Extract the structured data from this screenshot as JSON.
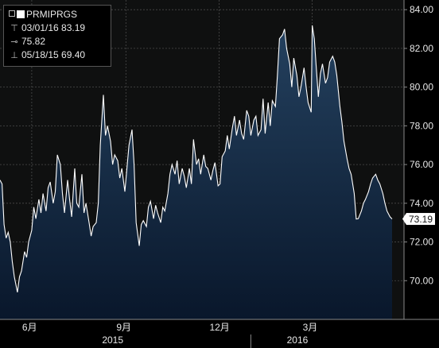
{
  "legend": {
    "series_name": "PRMIPRGS",
    "high_label": "03/01/16 83.19",
    "avg_label": "75.82",
    "low_label": "05/18/15 69.40"
  },
  "last_value_label": "73.19",
  "colors": {
    "background_plot": "#0f1010",
    "area_top": "#24415f",
    "area_bottom": "#09172b",
    "line": "#ffffff",
    "grid": "#555555",
    "axis_bg": "#000000"
  },
  "chart_data": {
    "type": "area",
    "series": [
      {
        "name": "PRMIPRGS",
        "x": [
          "2015-05-01",
          "2015-05-03",
          "2015-05-05",
          "2015-05-07",
          "2015-05-09",
          "2015-05-11",
          "2015-05-13",
          "2015-05-15",
          "2015-05-18",
          "2015-05-20",
          "2015-05-22",
          "2015-05-25",
          "2015-05-27",
          "2015-05-29",
          "2015-06-01",
          "2015-06-03",
          "2015-06-05",
          "2015-06-08",
          "2015-06-10",
          "2015-06-12",
          "2015-06-15",
          "2015-06-17",
          "2015-06-19",
          "2015-06-22",
          "2015-06-24",
          "2015-06-26",
          "2015-06-29",
          "2015-07-01",
          "2015-07-03",
          "2015-07-06",
          "2015-07-08",
          "2015-07-10",
          "2015-07-13",
          "2015-07-15",
          "2015-07-17",
          "2015-07-20",
          "2015-07-22",
          "2015-07-24",
          "2015-07-27",
          "2015-07-29",
          "2015-07-31",
          "2015-08-03",
          "2015-08-05",
          "2015-08-07",
          "2015-08-10",
          "2015-08-12",
          "2015-08-14",
          "2015-08-17",
          "2015-08-19",
          "2015-08-21",
          "2015-08-24",
          "2015-08-26",
          "2015-08-28",
          "2015-08-31",
          "2015-09-02",
          "2015-09-04",
          "2015-09-07",
          "2015-09-09",
          "2015-09-11",
          "2015-09-14",
          "2015-09-16",
          "2015-09-18",
          "2015-09-21",
          "2015-09-23",
          "2015-09-25",
          "2015-09-28",
          "2015-09-30",
          "2015-10-02",
          "2015-10-05",
          "2015-10-07",
          "2015-10-09",
          "2015-10-12",
          "2015-10-14",
          "2015-10-16",
          "2015-10-19",
          "2015-10-21",
          "2015-10-23",
          "2015-10-26",
          "2015-10-28",
          "2015-10-30",
          "2015-11-02",
          "2015-11-04",
          "2015-11-06",
          "2015-11-09",
          "2015-11-11",
          "2015-11-13",
          "2015-11-16",
          "2015-11-18",
          "2015-11-20",
          "2015-11-23",
          "2015-11-25",
          "2015-11-27",
          "2015-11-30",
          "2015-12-02",
          "2015-12-04",
          "2015-12-07",
          "2015-12-09",
          "2015-12-11",
          "2015-12-14",
          "2015-12-16",
          "2015-12-18",
          "2015-12-21",
          "2015-12-23",
          "2015-12-25",
          "2015-12-28",
          "2015-12-30",
          "2016-01-01",
          "2016-01-04",
          "2016-01-06",
          "2016-01-08",
          "2016-01-11",
          "2016-01-13",
          "2016-01-15",
          "2016-01-18",
          "2016-01-20",
          "2016-01-22",
          "2016-01-25",
          "2016-01-27",
          "2016-01-29",
          "2016-02-01",
          "2016-02-03",
          "2016-02-05",
          "2016-02-08",
          "2016-02-10",
          "2016-02-12",
          "2016-02-15",
          "2016-02-17",
          "2016-02-19",
          "2016-02-22",
          "2016-02-24",
          "2016-02-26",
          "2016-02-29",
          "2016-03-01",
          "2016-03-03",
          "2016-03-05",
          "2016-03-07",
          "2016-03-09",
          "2016-03-11",
          "2016-03-14",
          "2016-03-16",
          "2016-03-18",
          "2016-03-21",
          "2016-03-23",
          "2016-03-25",
          "2016-03-28",
          "2016-03-30",
          "2016-04-01",
          "2016-04-04",
          "2016-04-06",
          "2016-04-08",
          "2016-04-11",
          "2016-04-13",
          "2016-04-15",
          "2016-04-18",
          "2016-04-20",
          "2016-04-22",
          "2016-04-25",
          "2016-04-27",
          "2016-04-29",
          "2016-05-02",
          "2016-05-04",
          "2016-05-06",
          "2016-05-09",
          "2016-05-11",
          "2016-05-13",
          "2016-05-16",
          "2016-05-18"
        ],
        "values": [
          75.2,
          75.0,
          72.9,
          72.2,
          72.5,
          72.0,
          71.0,
          70.2,
          69.4,
          70.2,
          70.5,
          71.5,
          71.2,
          72.0,
          72.6,
          73.8,
          73.2,
          74.2,
          73.5,
          74.5,
          73.6,
          74.8,
          75.1,
          74.0,
          74.6,
          76.5,
          76.0,
          74.5,
          73.5,
          75.2,
          74.2,
          73.3,
          75.8,
          74.0,
          73.8,
          75.5,
          73.5,
          74.0,
          73.0,
          72.3,
          72.8,
          73.0,
          74.0,
          77.0,
          79.6,
          77.5,
          78.0,
          77.2,
          76.0,
          76.5,
          76.2,
          75.3,
          75.8,
          74.6,
          75.8,
          77.0,
          77.8,
          76.0,
          73.0,
          71.8,
          72.9,
          73.1,
          72.8,
          73.8,
          74.1,
          73.2,
          73.9,
          73.5,
          73.0,
          73.8,
          73.6,
          74.5,
          75.5,
          76.0,
          75.5,
          76.2,
          75.0,
          75.8,
          75.4,
          74.8,
          75.8,
          75.0,
          77.3,
          76.0,
          76.3,
          75.5,
          76.5,
          75.9,
          75.8,
          75.2,
          75.7,
          76.1,
          74.9,
          75.0,
          76.4,
          76.7,
          77.5,
          76.8,
          77.9,
          78.5,
          77.5,
          78.3,
          77.6,
          77.3,
          78.8,
          78.5,
          77.5,
          78.3,
          78.5,
          77.5,
          77.8,
          79.4,
          77.6,
          79.2,
          78.0,
          79.3,
          79.0,
          80.6,
          82.5,
          82.7,
          83.0,
          82.0,
          81.2,
          80.0,
          81.5,
          80.6,
          79.5,
          80.0,
          81.0,
          80.0,
          79.2,
          78.7,
          83.19,
          82.5,
          81.0,
          79.5,
          80.7,
          81.2,
          80.2,
          80.5,
          81.3,
          81.6,
          81.3,
          80.6,
          79.0,
          78.2,
          77.2,
          76.3,
          75.8,
          75.5,
          74.5,
          73.19,
          73.2,
          73.6,
          74.0,
          74.2,
          74.6,
          75.0,
          75.3,
          75.5,
          75.2,
          75.0,
          74.5,
          74.0,
          73.6,
          73.3,
          73.19
        ]
      }
    ],
    "x_tick_labels": [
      "6月",
      "9月",
      "12月",
      "3月"
    ],
    "year_labels": [
      "2015",
      "2016"
    ],
    "y_tick_labels": [
      "70.00",
      "72.00",
      "74.00",
      "76.00",
      "78.00",
      "80.00",
      "82.00",
      "84.00"
    ],
    "ylim": [
      68.0,
      84.5
    ],
    "grid": true,
    "y_axis_position": "right",
    "legend_position": "top-left"
  }
}
